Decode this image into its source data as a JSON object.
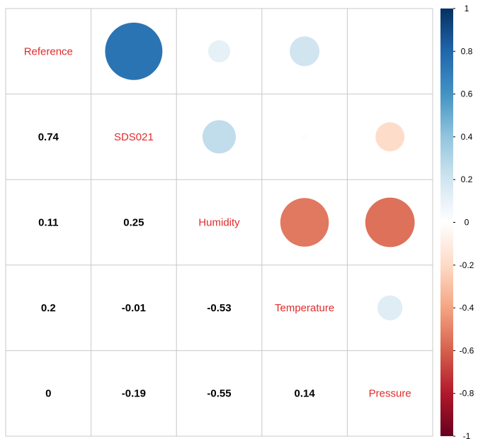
{
  "chart_data": {
    "type": "heatmap",
    "variables": [
      "Reference",
      "SDS021",
      "Humidity",
      "Temperature",
      "Pressure"
    ],
    "matrix": [
      [
        1,
        0.74,
        0.11,
        0.2,
        0
      ],
      [
        0.74,
        1,
        0.25,
        -0.01,
        -0.19
      ],
      [
        0.11,
        0.25,
        1,
        -0.53,
        -0.55
      ],
      [
        0.2,
        -0.01,
        -0.53,
        1,
        0.14
      ],
      [
        0,
        -0.19,
        -0.55,
        0.14,
        1
      ]
    ],
    "lower_labels": [
      [
        "0.74"
      ],
      [
        "0.11",
        "0.25"
      ],
      [
        "0.2",
        "-0.01",
        "-0.53"
      ],
      [
        "0",
        "-0.19",
        "-0.55",
        "0.14"
      ]
    ],
    "upper_style": "circle",
    "lower_style": "number",
    "colorbar": {
      "range": [
        -1,
        1
      ],
      "ticks": [
        "1",
        "0.8",
        "0.6",
        "0.4",
        "0.2",
        "0",
        "-0.2",
        "-0.4",
        "-0.6",
        "-0.8",
        "-1"
      ],
      "colors": [
        "#67001F",
        "#B2182B",
        "#D6604D",
        "#F4A582",
        "#FDDBC7",
        "#FFFFFF",
        "#D1E5F0",
        "#92C5DE",
        "#4393C3",
        "#2166AC",
        "#053061"
      ]
    },
    "label_color": "#E02B2B",
    "grid": true
  }
}
